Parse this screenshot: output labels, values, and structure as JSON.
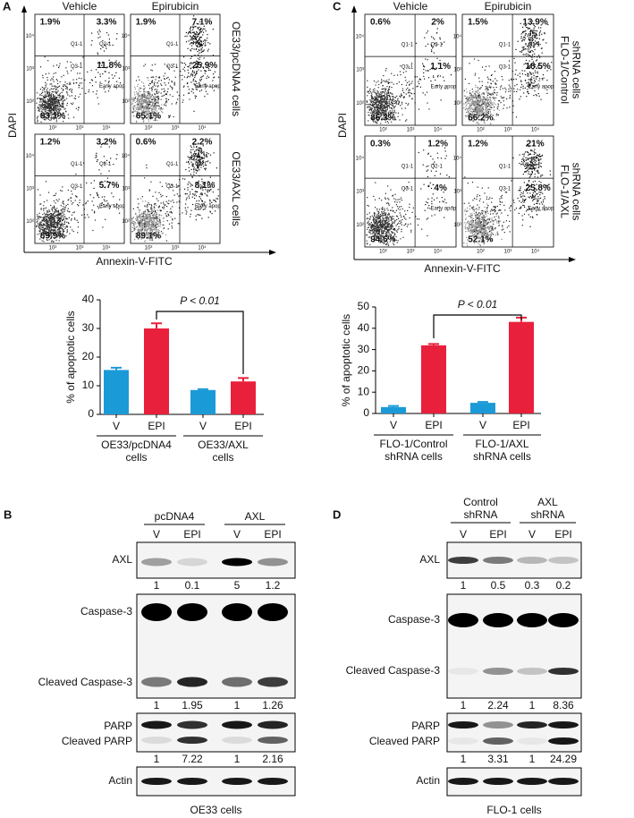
{
  "panel_a": {
    "letter": "A",
    "flow": {
      "columns": [
        "Vehicle",
        "Epirubicin"
      ],
      "rows": [
        [
          "OE33/pcDNA4 cells"
        ],
        [
          "OE33/AXL cells"
        ]
      ],
      "y_label": "DAPI",
      "x_label": "Annexin-V-FITC",
      "x_ticks": [
        "10²",
        "10³",
        "10⁴"
      ],
      "y_ticks": [
        "10²",
        "10³",
        "10⁴"
      ],
      "gates": [
        "Q1-1",
        "Q2-1",
        "Q3-1",
        "Early apop"
      ],
      "plots": [
        {
          "quadrants": [
            "1.9%",
            "3.3%",
            "11.8%",
            "83.1%"
          ]
        },
        {
          "quadrants": [
            "1.9%",
            "7.1%",
            "25.9%",
            "65.1%"
          ]
        },
        {
          "quadrants": [
            "1.2%",
            "3.2%",
            "5.7%",
            "89.9%"
          ]
        },
        {
          "quadrants": [
            "0.6%",
            "2.2%",
            "8.1%",
            "89.1%"
          ]
        }
      ]
    },
    "bar": {
      "type": "bar",
      "y_label": "% of apoptotic cells",
      "ylim": [
        0,
        40
      ],
      "yticks": [
        0,
        10,
        20,
        30,
        40
      ],
      "categories": [
        "V",
        "EPI",
        "V",
        "EPI"
      ],
      "values": [
        15.5,
        30,
        8.5,
        11.5
      ],
      "errors": [
        0.8,
        1.8,
        0.3,
        1.2
      ],
      "colors": [
        "#1b9ad8",
        "#e9203c",
        "#1b9ad8",
        "#e9203c"
      ],
      "groups": [
        [
          "OE33/pcDNA4",
          "cells"
        ],
        [
          "OE33/AXL",
          "cells"
        ]
      ],
      "annotation": "P < 0.01"
    }
  },
  "panel_b": {
    "letter": "B",
    "groups": [
      [
        "pcDNA4"
      ],
      [
        "AXL"
      ]
    ],
    "lanes": [
      "V",
      "EPI",
      "V",
      "EPI"
    ],
    "rows": [
      {
        "labels": [
          "AXL"
        ],
        "quant": [
          1,
          0.1,
          5,
          1.2
        ]
      },
      {
        "labels": [
          "Caspase-3",
          "Cleaved Caspase-3"
        ],
        "quant": [
          1,
          1.95,
          1,
          1.26
        ]
      },
      {
        "labels": [
          "PARP",
          "Cleaved PARP"
        ],
        "quant": [
          1,
          7.22,
          1,
          2.16
        ]
      },
      {
        "labels": [
          "Actin"
        ]
      }
    ],
    "footer": "OE33 cells"
  },
  "panel_c": {
    "letter": "C",
    "flow": {
      "columns": [
        "Vehicle",
        "Epirubicin"
      ],
      "rows": [
        [
          "FLO-1/Control",
          "shRNA cells"
        ],
        [
          "FLO-1/AXL",
          "shRNA cells"
        ]
      ],
      "y_label": "DAPI",
      "x_label": "Annexin-V-FITC",
      "x_ticks": [
        "10²",
        "10³",
        "10⁴"
      ],
      "y_ticks": [
        "10²",
        "10³",
        "10⁴"
      ],
      "gates": [
        "Q1-1",
        "Q2-1",
        "Q3-1",
        "Early apop"
      ],
      "plots": [
        {
          "quadrants": [
            "0.6%",
            "2%",
            "1.1%",
            "86.3%"
          ]
        },
        {
          "quadrants": [
            "1.5%",
            "13.9%",
            "18.5%",
            "66.2%"
          ]
        },
        {
          "quadrants": [
            "0.3%",
            "1.2%",
            "4%",
            "94.6%"
          ]
        },
        {
          "quadrants": [
            "1.2%",
            "21%",
            "25.8%",
            "52.1%"
          ]
        }
      ]
    },
    "bar": {
      "type": "bar",
      "y_label": "% of apoptotic cells",
      "ylim": [
        0,
        50
      ],
      "yticks": [
        0,
        10,
        20,
        30,
        40,
        50
      ],
      "categories": [
        "V",
        "EPI",
        "V",
        "EPI"
      ],
      "values": [
        3,
        32,
        5,
        43
      ],
      "errors": [
        0.5,
        0.6,
        0.4,
        2
      ],
      "colors": [
        "#1b9ad8",
        "#e9203c",
        "#1b9ad8",
        "#e9203c"
      ],
      "groups": [
        [
          "FLO-1/Control",
          "shRNA cells"
        ],
        [
          "FLO-1/AXL",
          "shRNA cells"
        ]
      ],
      "annotation": "P < 0.01"
    }
  },
  "panel_d": {
    "letter": "D",
    "groups": [
      [
        "Control",
        "shRNA"
      ],
      [
        "AXL",
        "shRNA"
      ]
    ],
    "lanes": [
      "V",
      "EPI",
      "V",
      "EPI"
    ],
    "rows": [
      {
        "labels": [
          "AXL"
        ],
        "quant": [
          1,
          0.5,
          0.3,
          0.2
        ]
      },
      {
        "labels": [
          "Caspase-3",
          "Cleaved Caspase-3"
        ],
        "quant": [
          1,
          2.24,
          1,
          8.36
        ]
      },
      {
        "labels": [
          "PARP",
          "Cleaved PARP"
        ],
        "quant": [
          1,
          3.31,
          1,
          24.29
        ]
      },
      {
        "labels": [
          "Actin"
        ]
      }
    ],
    "footer": "FLO-1 cells"
  }
}
